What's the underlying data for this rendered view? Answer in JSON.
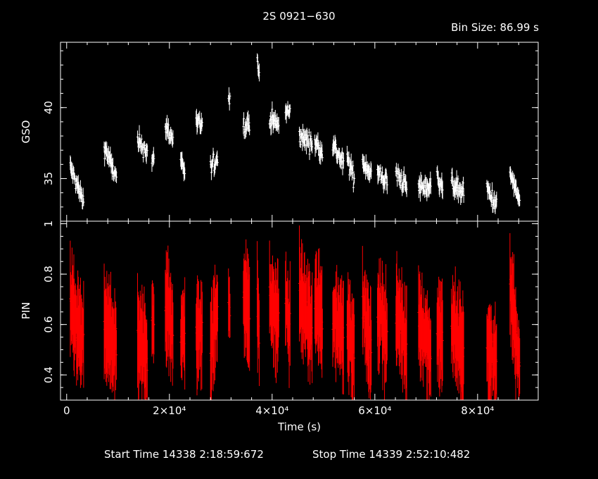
{
  "title": "2S 0921−630",
  "bin_size_label": "Bin Size:  86.99 s",
  "footer": {
    "start": "Start Time 14338   2:18:59:672",
    "stop": "Stop Time 14339   2:52:10:482"
  },
  "colors": {
    "gso": "#ffffff",
    "pin": "#ff0000",
    "axes": "#ffffff",
    "background": "#000000"
  },
  "chart_data": [
    {
      "type": "scatter",
      "title": "",
      "xlabel": "",
      "ylabel": "GSO",
      "xlim": [
        -1200,
        91800
      ],
      "ylim": [
        32.0,
        44.6
      ],
      "yticks": [
        35,
        40
      ],
      "ytick_labels": [
        "35",
        "40"
      ],
      "series": [
        {
          "segments": [
            {
              "x": [
                700,
                3300
              ],
              "y0": 35.8,
              "y1": 33.3
            },
            {
              "x": [
                7300,
                9700
              ],
              "y0": 37.3,
              "y1": 35.0
            },
            {
              "x": [
                13800,
                15700
              ],
              "y0": 37.5,
              "y1": 37.0
            },
            {
              "x": [
                16600,
                17000
              ],
              "y0": 36.2,
              "y1": 36.2
            },
            {
              "x": [
                19200,
                20700
              ],
              "y0": 38.8,
              "y1": 37.7
            },
            {
              "x": [
                22200,
                23000
              ],
              "y0": 36.4,
              "y1": 35.6
            },
            {
              "x": [
                25200,
                26400
              ],
              "y0": 38.8,
              "y1": 38.8
            },
            {
              "x": [
                28000,
                29400
              ],
              "y0": 35.7,
              "y1": 36.5
            },
            {
              "x": [
                31500,
                31800
              ],
              "y0": 40.7,
              "y1": 40.7
            },
            {
              "x": [
                34400,
                35600
              ],
              "y0": 38.7,
              "y1": 39.0
            },
            {
              "x": [
                37100,
                37500
              ],
              "y0": 43.0,
              "y1": 42.3
            },
            {
              "x": [
                39500,
                41300
              ],
              "y0": 39.3,
              "y1": 38.7
            },
            {
              "x": [
                42600,
                43500
              ],
              "y0": 39.7,
              "y1": 39.6
            },
            {
              "x": [
                45300,
                47800
              ],
              "y0": 38.0,
              "y1": 37.5
            },
            {
              "x": [
                48300,
                49800
              ],
              "y0": 37.5,
              "y1": 37.0
            },
            {
              "x": [
                51800,
                53900
              ],
              "y0": 37.4,
              "y1": 36.0
            },
            {
              "x": [
                54600,
                56000
              ],
              "y0": 36.4,
              "y1": 35.0
            },
            {
              "x": [
                57600,
                59300
              ],
              "y0": 36.2,
              "y1": 35.4
            },
            {
              "x": [
                60500,
                62400
              ],
              "y0": 35.4,
              "y1": 34.8
            },
            {
              "x": [
                64100,
                66200
              ],
              "y0": 35.4,
              "y1": 34.4
            },
            {
              "x": [
                68500,
                70900
              ],
              "y0": 34.4,
              "y1": 34.4
            },
            {
              "x": [
                72100,
                73200
              ],
              "y0": 35.3,
              "y1": 34.4
            },
            {
              "x": [
                74900,
                77300
              ],
              "y0": 34.7,
              "y1": 34.0
            },
            {
              "x": [
                81800,
                83700
              ],
              "y0": 34.3,
              "y1": 33.0
            },
            {
              "x": [
                86300,
                88200
              ],
              "y0": 35.4,
              "y1": 33.4
            }
          ]
        }
      ]
    },
    {
      "type": "scatter",
      "title": "",
      "xlabel": "Time (s)",
      "ylabel": "PIN",
      "xlim": [
        -1200,
        91800
      ],
      "ylim": [
        0.3,
        1.01
      ],
      "xticks": [
        0,
        20000,
        40000,
        60000,
        80000
      ],
      "xtick_labels": [
        "0",
        "2×10⁴",
        "4×10⁴",
        "6×10⁴",
        "8×10⁴"
      ],
      "yticks": [
        0.4,
        0.6,
        0.8,
        1
      ],
      "ytick_labels": [
        "0.4",
        "0.6",
        "0.8",
        "1"
      ],
      "series": [
        {
          "segments": [
            {
              "x": [
                700,
                3300
              ],
              "y0": 0.66,
              "y1": 0.52
            },
            {
              "x": [
                7300,
                9700
              ],
              "y0": 0.6,
              "y1": 0.5
            },
            {
              "x": [
                13800,
                15700
              ],
              "y0": 0.53,
              "y1": 0.48
            },
            {
              "x": [
                16600,
                17000
              ],
              "y0": 0.62,
              "y1": 0.62
            },
            {
              "x": [
                19200,
                20700
              ],
              "y0": 0.68,
              "y1": 0.58
            },
            {
              "x": [
                22200,
                23000
              ],
              "y0": 0.52,
              "y1": 0.58
            },
            {
              "x": [
                25200,
                26400
              ],
              "y0": 0.56,
              "y1": 0.6
            },
            {
              "x": [
                28000,
                29400
              ],
              "y0": 0.5,
              "y1": 0.66
            },
            {
              "x": [
                31500,
                31800
              ],
              "y0": 0.68,
              "y1": 0.68
            },
            {
              "x": [
                34400,
                35600
              ],
              "y0": 0.72,
              "y1": 0.64
            },
            {
              "x": [
                37100,
                37500
              ],
              "y0": 0.7,
              "y1": 0.58
            },
            {
              "x": [
                39500,
                41300
              ],
              "y0": 0.68,
              "y1": 0.62
            },
            {
              "x": [
                42600,
                43500
              ],
              "y0": 0.68,
              "y1": 0.58
            },
            {
              "x": [
                45300,
                47800
              ],
              "y0": 0.72,
              "y1": 0.58
            },
            {
              "x": [
                48300,
                49800
              ],
              "y0": 0.68,
              "y1": 0.62
            },
            {
              "x": [
                51800,
                53900
              ],
              "y0": 0.62,
              "y1": 0.58
            },
            {
              "x": [
                54600,
                56000
              ],
              "y0": 0.62,
              "y1": 0.5
            },
            {
              "x": [
                57600,
                59300
              ],
              "y0": 0.68,
              "y1": 0.48
            },
            {
              "x": [
                60500,
                62400
              ],
              "y0": 0.66,
              "y1": 0.56
            },
            {
              "x": [
                64100,
                66200
              ],
              "y0": 0.66,
              "y1": 0.5
            },
            {
              "x": [
                68500,
                70900
              ],
              "y0": 0.64,
              "y1": 0.48
            },
            {
              "x": [
                72100,
                73200
              ],
              "y0": 0.58,
              "y1": 0.56
            },
            {
              "x": [
                74900,
                77300
              ],
              "y0": 0.6,
              "y1": 0.48
            },
            {
              "x": [
                81800,
                83700
              ],
              "y0": 0.5,
              "y1": 0.44
            },
            {
              "x": [
                86300,
                88200
              ],
              "y0": 0.76,
              "y1": 0.42
            }
          ]
        }
      ]
    }
  ]
}
